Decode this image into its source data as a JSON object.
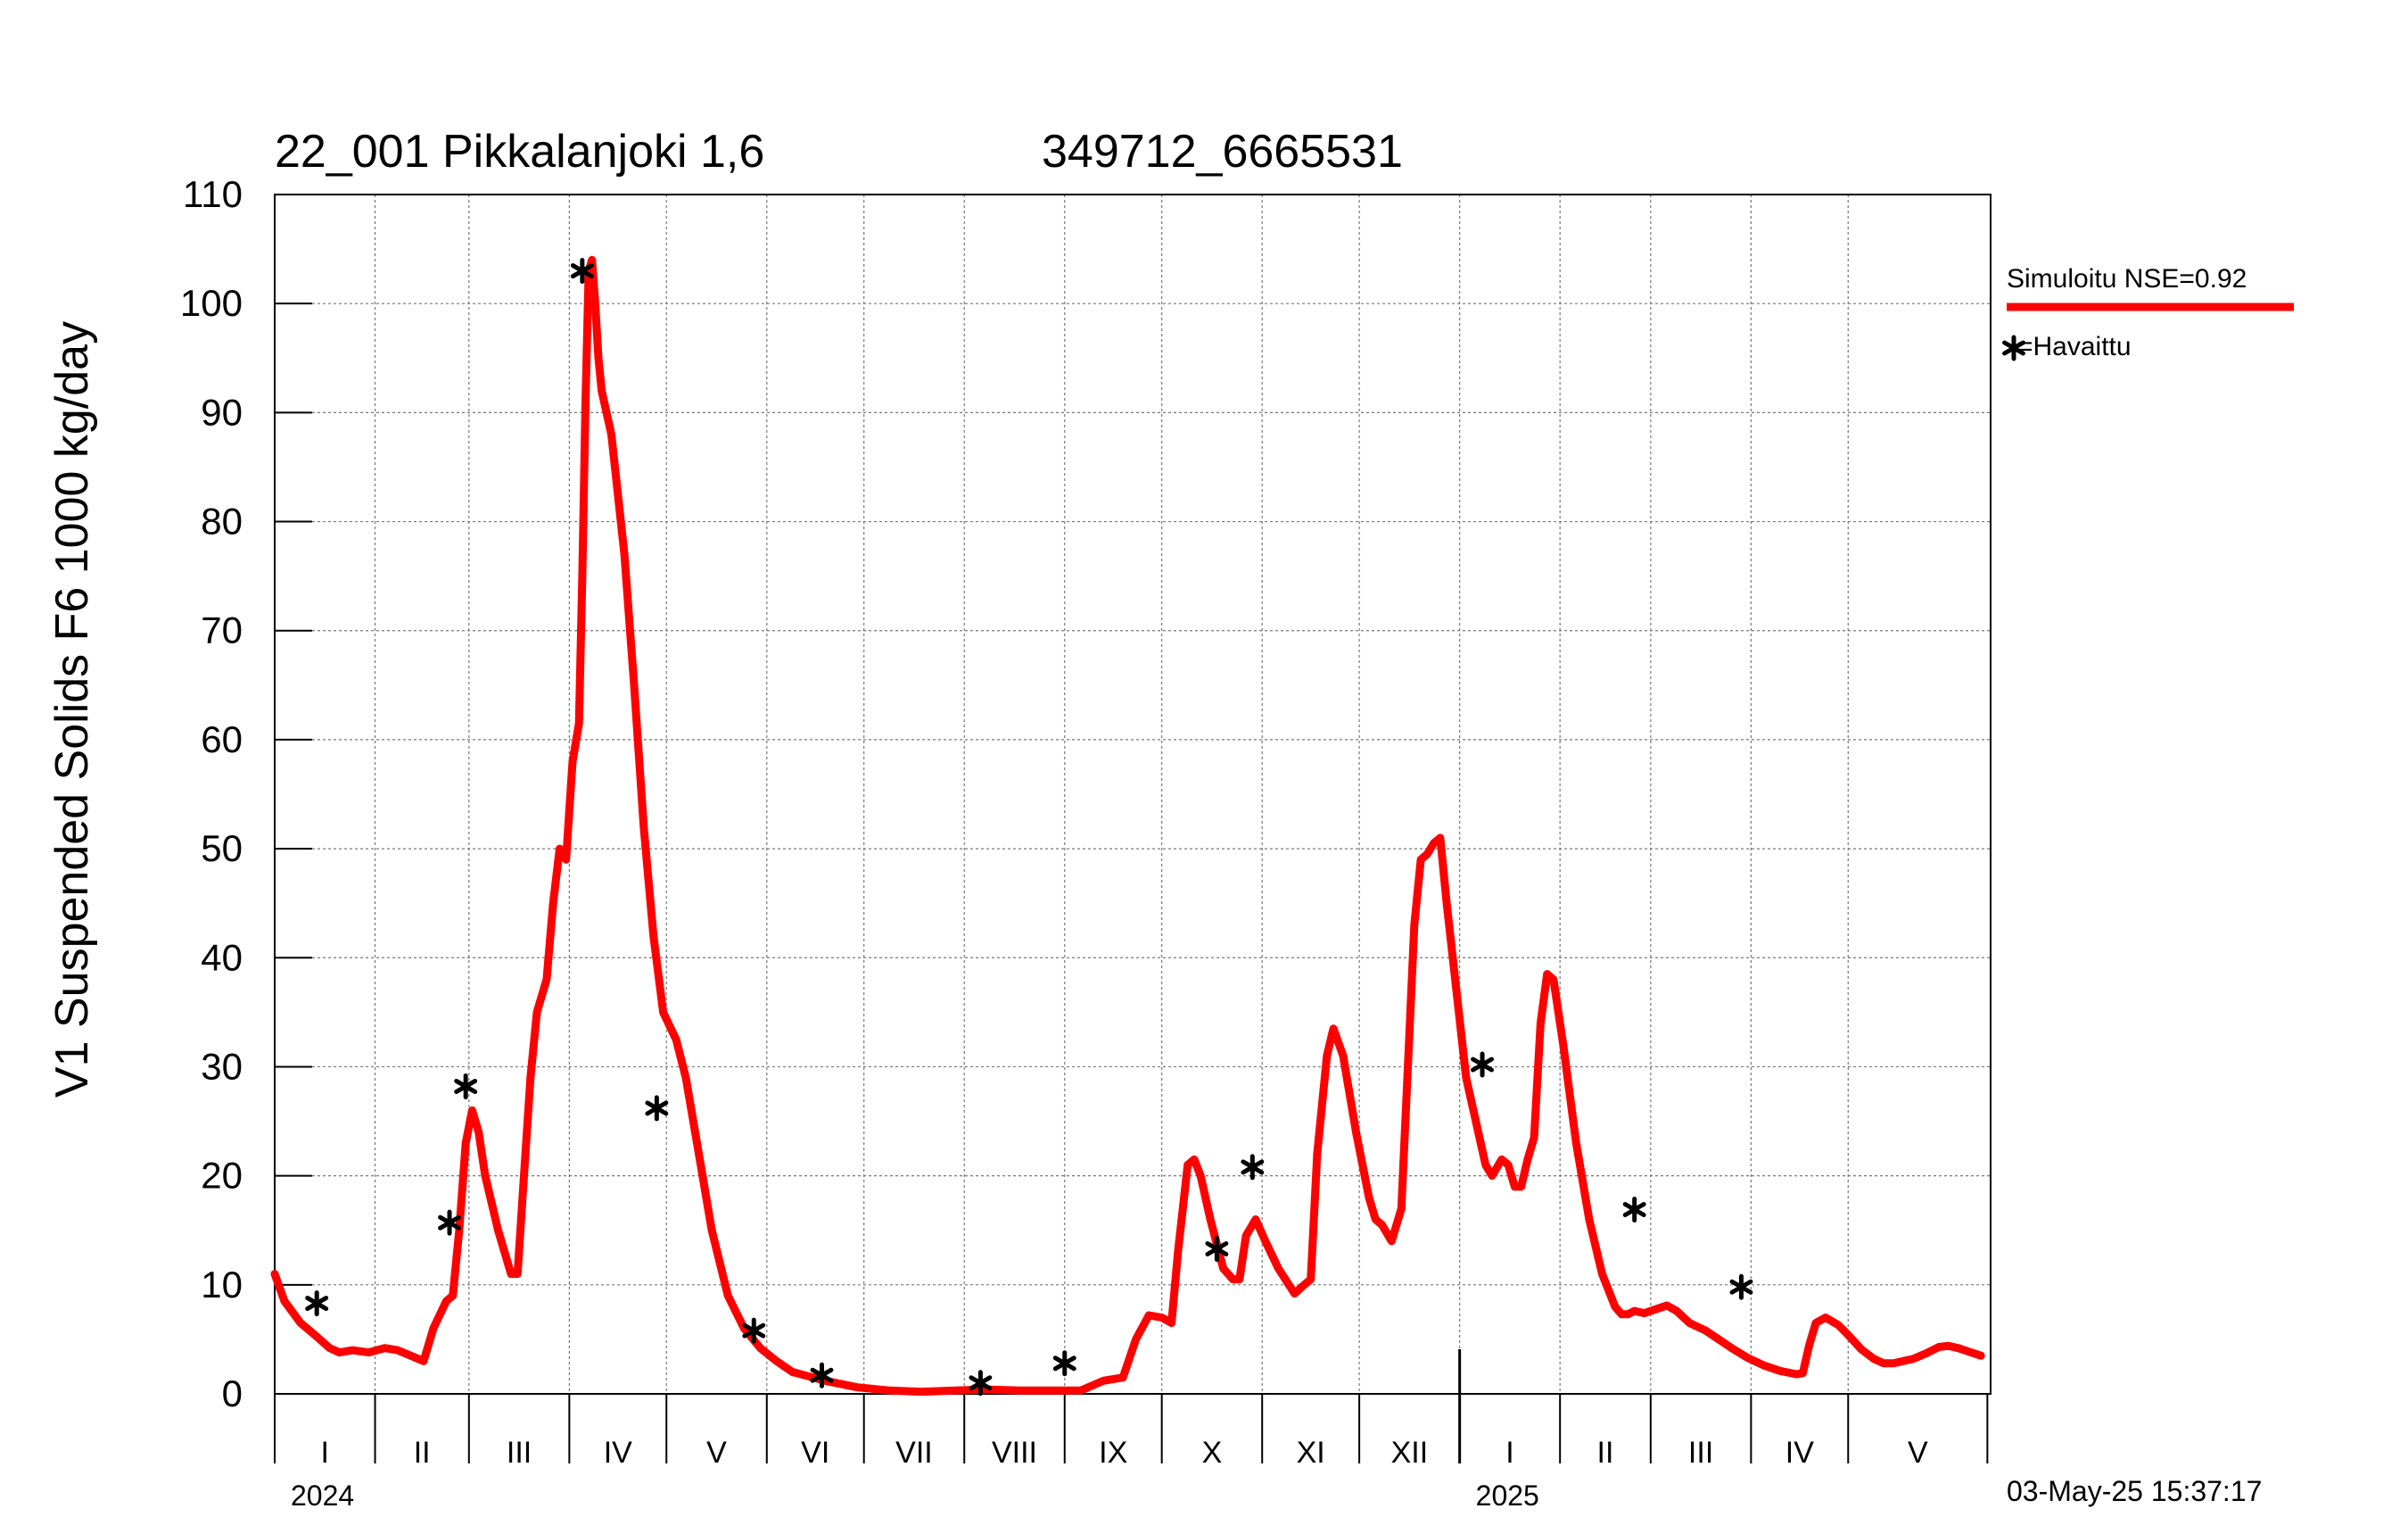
{
  "chart_data": {
    "type": "line",
    "title_left": "22_001 Pikkalanjoki 1,6",
    "title_right": "349712_6665531",
    "ylabel": "V1 Suspended Solids F6 1000 kg/day",
    "ylim": [
      0,
      110
    ],
    "yticks": [
      0,
      10,
      20,
      30,
      40,
      50,
      60,
      70,
      80,
      90,
      100,
      110
    ],
    "x_unit": "days since 2024-01-01",
    "xlim": [
      0,
      530
    ],
    "months": [
      {
        "label": "I",
        "start": 0
      },
      {
        "label": "II",
        "start": 31
      },
      {
        "label": "III",
        "start": 60
      },
      {
        "label": "IV",
        "start": 91
      },
      {
        "label": "V",
        "start": 121
      },
      {
        "label": "VI",
        "start": 152
      },
      {
        "label": "VII",
        "start": 182
      },
      {
        "label": "VIII",
        "start": 213
      },
      {
        "label": "IX",
        "start": 244
      },
      {
        "label": "X",
        "start": 274
      },
      {
        "label": "XI",
        "start": 305
      },
      {
        "label": "XII",
        "start": 335
      },
      {
        "label": "I",
        "start": 366
      },
      {
        "label": "II",
        "start": 397
      },
      {
        "label": "III",
        "start": 425
      },
      {
        "label": "IV",
        "start": 456
      },
      {
        "label": "V",
        "start": 486
      }
    ],
    "month_end": 529,
    "years": [
      {
        "label": "2024",
        "day": 0
      },
      {
        "label": "2025",
        "day": 366
      }
    ],
    "year_boundary_day": 366,
    "series": [
      {
        "name": "Simuloitu NSE=0.92",
        "color": "#ff0000",
        "style": "line",
        "points": [
          [
            0,
            11
          ],
          [
            3,
            8.5
          ],
          [
            8,
            6.5
          ],
          [
            12,
            5.5
          ],
          [
            17,
            4.2
          ],
          [
            20,
            3.8
          ],
          [
            24,
            4
          ],
          [
            29,
            3.8
          ],
          [
            34,
            4.2
          ],
          [
            38,
            4
          ],
          [
            42,
            3.5
          ],
          [
            46,
            3
          ],
          [
            49,
            6
          ],
          [
            53,
            8.5
          ],
          [
            55,
            9
          ],
          [
            57,
            15
          ],
          [
            59,
            23
          ],
          [
            61,
            26
          ],
          [
            63,
            24
          ],
          [
            65,
            20
          ],
          [
            69,
            15
          ],
          [
            73,
            11
          ],
          [
            75,
            11
          ],
          [
            77,
            20
          ],
          [
            79,
            29
          ],
          [
            81,
            35
          ],
          [
            84,
            38
          ],
          [
            86,
            45
          ],
          [
            88,
            50
          ],
          [
            90,
            49
          ],
          [
            92,
            58
          ],
          [
            94,
            61.5
          ],
          [
            95,
            75
          ],
          [
            96,
            91
          ],
          [
            97,
            103
          ],
          [
            98,
            104
          ],
          [
            99,
            100
          ],
          [
            100,
            95
          ],
          [
            101,
            92
          ],
          [
            104,
            88
          ],
          [
            108,
            77
          ],
          [
            111,
            65
          ],
          [
            114,
            52
          ],
          [
            117,
            42
          ],
          [
            120,
            35
          ],
          [
            124,
            32.5
          ],
          [
            127,
            29
          ],
          [
            131,
            22
          ],
          [
            135,
            15
          ],
          [
            140,
            9
          ],
          [
            145,
            6
          ],
          [
            150,
            4.2
          ],
          [
            155,
            3
          ],
          [
            160,
            2
          ],
          [
            170,
            1.2
          ],
          [
            180,
            0.6
          ],
          [
            190,
            0.3
          ],
          [
            200,
            0.2
          ],
          [
            210,
            0.3
          ],
          [
            220,
            0.4
          ],
          [
            230,
            0.3
          ],
          [
            240,
            0.3
          ],
          [
            249,
            0.3
          ],
          [
            256,
            1.2
          ],
          [
            262,
            1.5
          ],
          [
            266,
            5
          ],
          [
            270,
            7.2
          ],
          [
            274,
            7
          ],
          [
            277,
            6.5
          ],
          [
            279,
            13
          ],
          [
            282,
            21
          ],
          [
            284,
            21.5
          ],
          [
            286,
            20
          ],
          [
            289,
            16
          ],
          [
            293,
            11.5
          ],
          [
            296,
            10.5
          ],
          [
            298,
            10.5
          ],
          [
            300,
            14.5
          ],
          [
            303,
            16
          ],
          [
            306,
            14
          ],
          [
            310,
            11.5
          ],
          [
            315,
            9.2
          ],
          [
            318,
            10
          ],
          [
            320,
            10.5
          ],
          [
            322,
            22
          ],
          [
            325,
            31
          ],
          [
            327,
            33.5
          ],
          [
            330,
            31
          ],
          [
            334,
            24
          ],
          [
            338,
            18
          ],
          [
            340,
            16
          ],
          [
            342,
            15.5
          ],
          [
            345,
            14
          ],
          [
            348,
            17
          ],
          [
            350,
            30
          ],
          [
            352,
            43
          ],
          [
            354,
            49
          ],
          [
            356,
            49.5
          ],
          [
            358,
            50.5
          ],
          [
            360,
            51
          ],
          [
            362,
            45
          ],
          [
            365,
            37
          ],
          [
            368,
            29
          ],
          [
            371,
            25
          ],
          [
            374,
            21
          ],
          [
            376,
            20
          ],
          [
            379,
            21.5
          ],
          [
            381,
            21
          ],
          [
            383,
            19
          ],
          [
            385,
            19
          ],
          [
            387,
            21.5
          ],
          [
            389,
            23.5
          ],
          [
            391,
            34
          ],
          [
            393,
            38.5
          ],
          [
            395,
            38
          ],
          [
            398,
            32
          ],
          [
            402,
            23
          ],
          [
            406,
            16
          ],
          [
            410,
            11
          ],
          [
            414,
            8
          ],
          [
            416,
            7.3
          ],
          [
            418,
            7.3
          ],
          [
            420,
            7.6
          ],
          [
            423,
            7.4
          ],
          [
            427,
            7.8
          ],
          [
            430,
            8.1
          ],
          [
            433,
            7.6
          ],
          [
            437,
            6.5
          ],
          [
            442,
            5.8
          ],
          [
            446,
            5
          ],
          [
            450,
            4.2
          ],
          [
            455,
            3.3
          ],
          [
            460,
            2.6
          ],
          [
            465,
            2.1
          ],
          [
            470,
            1.8
          ],
          [
            472,
            1.9
          ],
          [
            474,
            4.5
          ],
          [
            476,
            6.5
          ],
          [
            479,
            7
          ],
          [
            483,
            6.3
          ],
          [
            486,
            5.4
          ],
          [
            490,
            4.1
          ],
          [
            494,
            3.2
          ],
          [
            497,
            2.8
          ],
          [
            500,
            2.8
          ],
          [
            503,
            3
          ],
          [
            506,
            3.2
          ],
          [
            510,
            3.7
          ],
          [
            514,
            4.3
          ],
          [
            517,
            4.4
          ],
          [
            520,
            4.2
          ],
          [
            524,
            3.8
          ],
          [
            527,
            3.5
          ]
        ]
      },
      {
        "name": "=Havaittu",
        "color": "#000000",
        "style": "marker",
        "points": [
          [
            13,
            8.3
          ],
          [
            54,
            15.7
          ],
          [
            59,
            28.2
          ],
          [
            95,
            103
          ],
          [
            118,
            26.2
          ],
          [
            148,
            5.8
          ],
          [
            169,
            1.7
          ],
          [
            218,
            1.0
          ],
          [
            244,
            2.8
          ],
          [
            291,
            13.3
          ],
          [
            302,
            20.8
          ],
          [
            373,
            30.2
          ],
          [
            420,
            16.9
          ],
          [
            453,
            9.8
          ]
        ]
      }
    ],
    "grid": true,
    "legend_position": "right",
    "timestamp": "03-May-25 15:37:17"
  }
}
